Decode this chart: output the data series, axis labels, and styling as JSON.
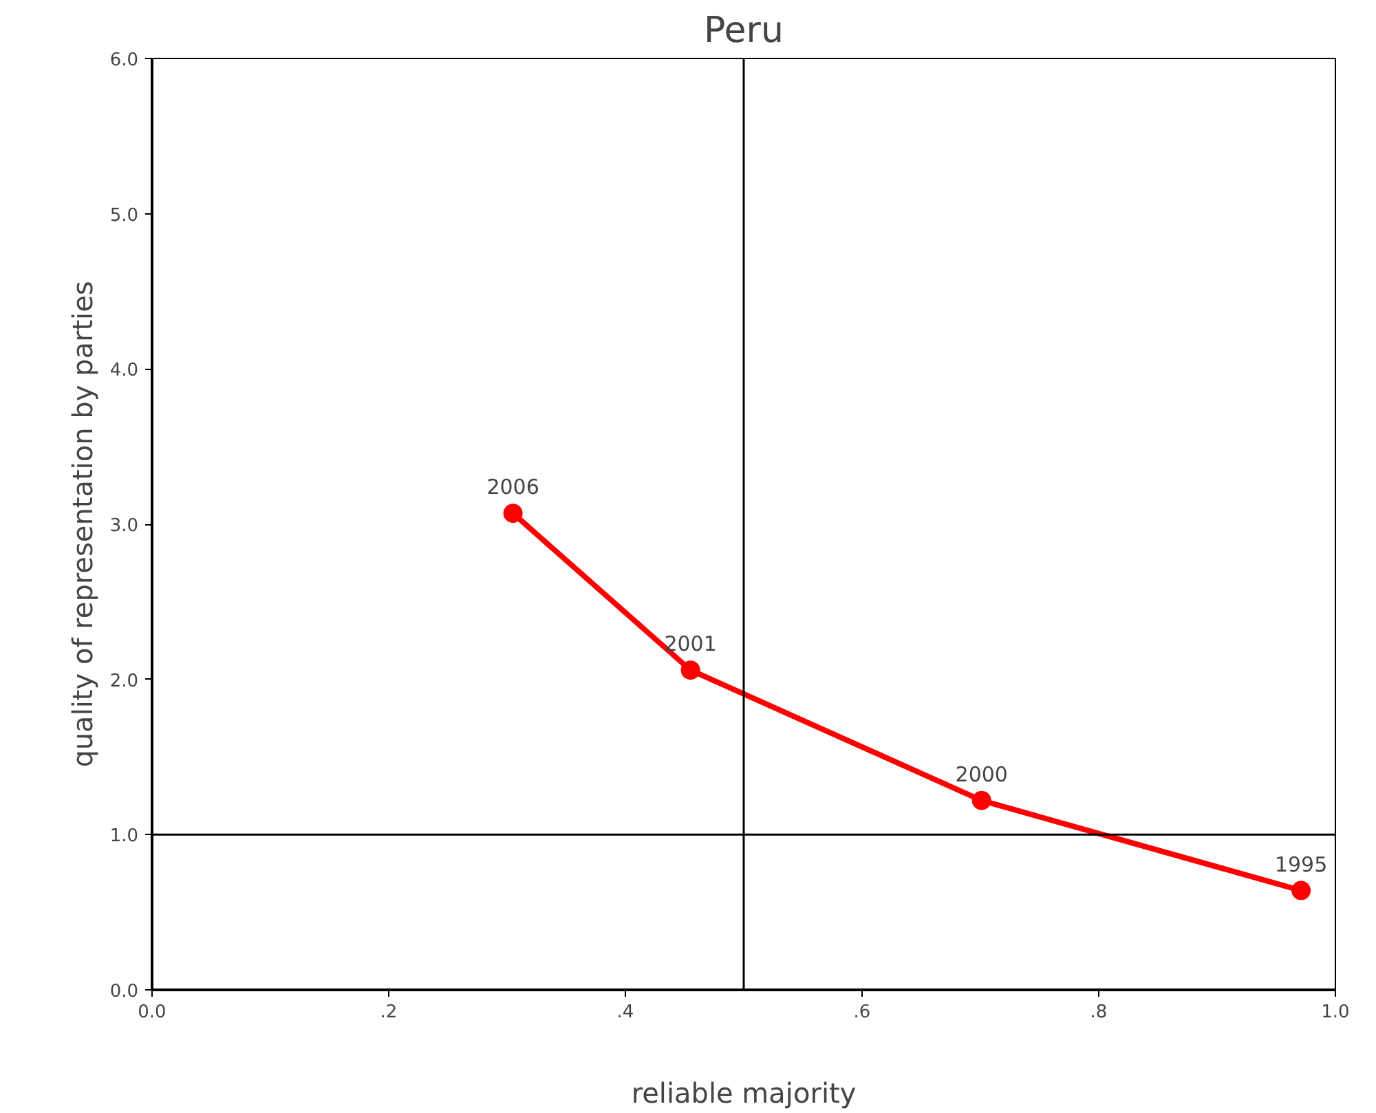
{
  "chart_data": {
    "type": "line",
    "title": "Peru",
    "xlabel": "reliable majority",
    "ylabel": "quality of representation by parties",
    "x": [
      0.305,
      0.455,
      0.701,
      0.971
    ],
    "series": [
      {
        "color": "#ff0000",
        "values": [
          3.07,
          2.06,
          1.22,
          0.64
        ]
      }
    ],
    "marker": "circle",
    "line_style": "solid",
    "grid": false,
    "xlim": [
      0,
      1
    ],
    "ylim": [
      0,
      6
    ],
    "xticks": [
      {
        "value": 0,
        "label": "0.0"
      },
      {
        "value": 0.2,
        "label": ".2"
      },
      {
        "value": 0.4,
        "label": ".4"
      },
      {
        "value": 0.6,
        "label": ".6"
      },
      {
        "value": 0.8,
        "label": ".8"
      },
      {
        "value": 1,
        "label": "1.0"
      }
    ],
    "yticks": [
      {
        "value": 0,
        "label": "0.0"
      },
      {
        "value": 1,
        "label": "1.0"
      },
      {
        "value": 2,
        "label": "2.0"
      },
      {
        "value": 3,
        "label": "3.0"
      },
      {
        "value": 4,
        "label": "4.0"
      },
      {
        "value": 5,
        "label": "5.0"
      },
      {
        "value": 6,
        "label": "6.0"
      }
    ],
    "ref_lines": [
      {
        "axis": "x",
        "value": 0.5,
        "color": "#000000"
      },
      {
        "axis": "y",
        "value": 1.0,
        "color": "#000000"
      }
    ],
    "annotations": [
      {
        "text": "2006",
        "x": 0.305,
        "y": 3.07
      },
      {
        "text": "2001",
        "x": 0.455,
        "y": 2.06
      },
      {
        "text": "2000",
        "x": 0.701,
        "y": 1.22
      },
      {
        "text": "1995",
        "x": 0.971,
        "y": 0.64
      }
    ]
  }
}
